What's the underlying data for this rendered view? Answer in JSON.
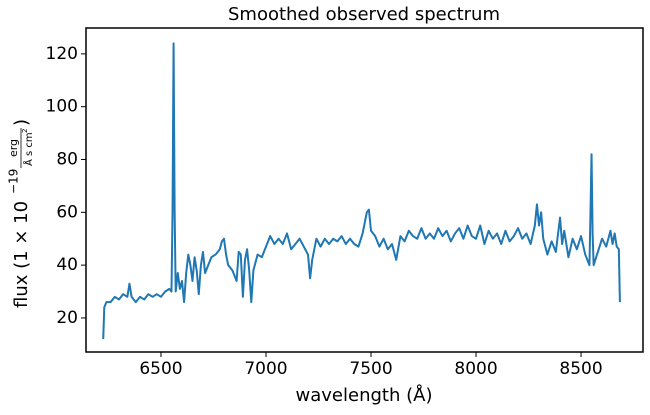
{
  "chart_data": {
    "type": "line",
    "title": "Smoothed observed spectrum",
    "xlabel": "wavelength (Å)",
    "ylabel": {
      "prefix": "flux (1 × 10",
      "exponent": "−19",
      "numerator": "erg",
      "denominator": "Å s cm",
      "denominator_exponent": "2",
      "suffix": ")"
    },
    "color": "#1f77b4",
    "x": [
      6225,
      6230,
      6240,
      6260,
      6280,
      6300,
      6320,
      6340,
      6350,
      6360,
      6380,
      6400,
      6420,
      6440,
      6460,
      6480,
      6500,
      6520,
      6540,
      6550,
      6555,
      6560,
      6565,
      6570,
      6580,
      6590,
      6600,
      6610,
      6620,
      6630,
      6640,
      6650,
      6660,
      6670,
      6680,
      6690,
      6700,
      6710,
      6720,
      6740,
      6760,
      6780,
      6790,
      6800,
      6810,
      6820,
      6840,
      6860,
      6870,
      6880,
      6890,
      6900,
      6910,
      6920,
      6930,
      6940,
      6960,
      6980,
      7000,
      7020,
      7040,
      7060,
      7080,
      7100,
      7120,
      7140,
      7160,
      7180,
      7200,
      7210,
      7220,
      7240,
      7260,
      7280,
      7300,
      7320,
      7340,
      7360,
      7380,
      7400,
      7420,
      7440,
      7460,
      7480,
      7490,
      7500,
      7520,
      7540,
      7560,
      7580,
      7600,
      7620,
      7640,
      7660,
      7680,
      7700,
      7720,
      7740,
      7760,
      7780,
      7800,
      7820,
      7840,
      7860,
      7880,
      7900,
      7920,
      7940,
      7960,
      7980,
      8000,
      8020,
      8040,
      8060,
      8080,
      8100,
      8120,
      8140,
      8160,
      8180,
      8200,
      8220,
      8240,
      8260,
      8280,
      8290,
      8300,
      8310,
      8320,
      8340,
      8360,
      8380,
      8400,
      8410,
      8420,
      8440,
      8460,
      8480,
      8500,
      8520,
      8540,
      8545,
      8550,
      8555,
      8560,
      8580,
      8600,
      8620,
      8640,
      8650,
      8660,
      8670,
      8680,
      8685
    ],
    "values": [
      12,
      24,
      26,
      26,
      28,
      27,
      29,
      28,
      33,
      28,
      26,
      28,
      27,
      29,
      28,
      29,
      28,
      30,
      31,
      30,
      60,
      124,
      60,
      30,
      37,
      31,
      34,
      26,
      37,
      44,
      40,
      34,
      43,
      38,
      29,
      40,
      45,
      37,
      39,
      43,
      44,
      46,
      49,
      50,
      44,
      40,
      38,
      34,
      45,
      44,
      28,
      42,
      46,
      38,
      26,
      38,
      44,
      43,
      47,
      51,
      48,
      50,
      48,
      52,
      46,
      48,
      50,
      47,
      44,
      35,
      42,
      50,
      47,
      50,
      48,
      50,
      49,
      51,
      48,
      50,
      48,
      47,
      52,
      60,
      61,
      53,
      51,
      47,
      50,
      46,
      48,
      42,
      51,
      49,
      53,
      51,
      50,
      54,
      50,
      52,
      50,
      54,
      51,
      53,
      49,
      52,
      54,
      50,
      55,
      51,
      50,
      55,
      48,
      53,
      50,
      52,
      48,
      53,
      49,
      51,
      54,
      50,
      52,
      48,
      55,
      63,
      55,
      60,
      50,
      44,
      49,
      45,
      58,
      48,
      53,
      43,
      50,
      46,
      51,
      44,
      40,
      60,
      82,
      52,
      40,
      45,
      50,
      47,
      53,
      48,
      52,
      47,
      46,
      26
    ],
    "xlim": [
      6143,
      8795
    ],
    "ylim": [
      7.1,
      129.8
    ],
    "xticks": [
      6500,
      7000,
      7500,
      8000,
      8500
    ],
    "yticks": [
      20,
      40,
      60,
      80,
      100,
      120
    ],
    "grid": false
  }
}
